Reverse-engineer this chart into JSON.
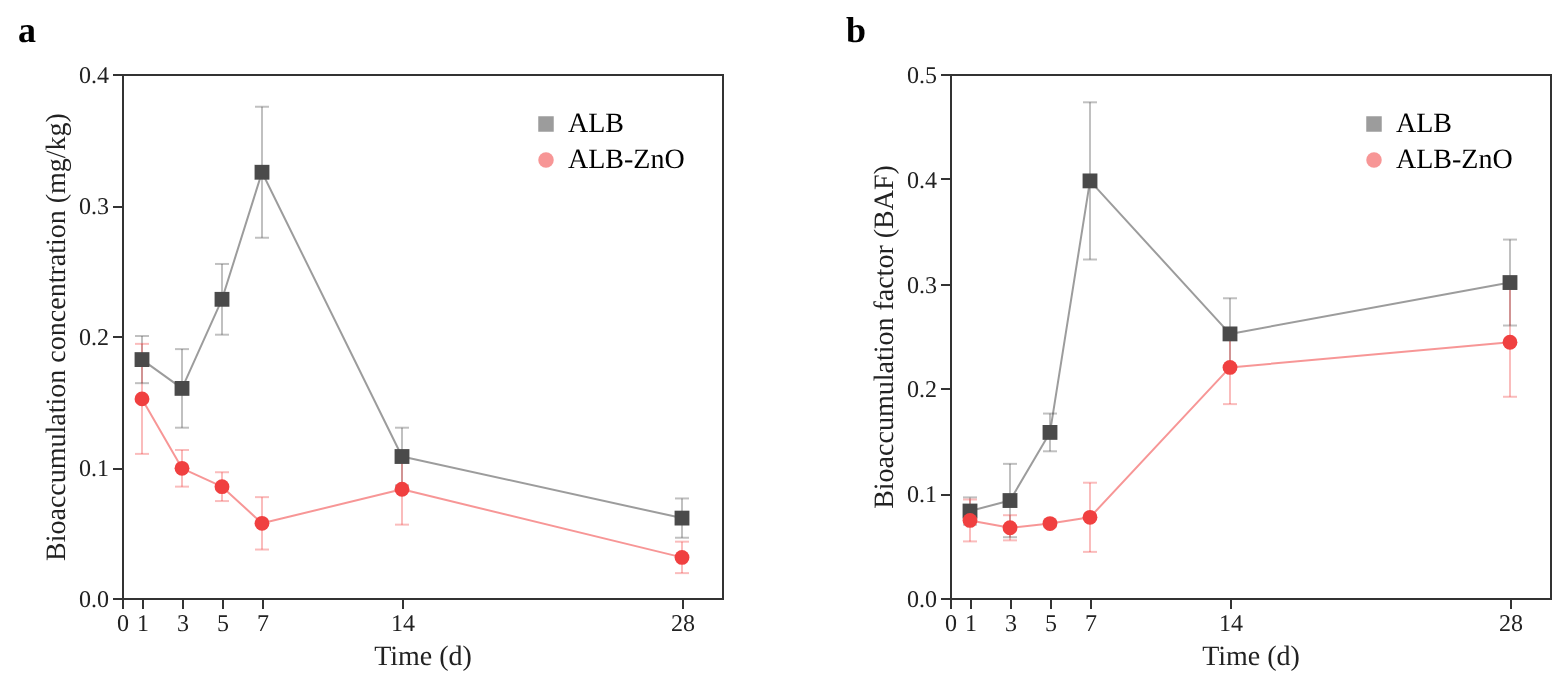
{
  "chart_data": [
    {
      "type": "line",
      "title": "a",
      "xlabel": "Time (d)",
      "ylabel": "Bioaccumulation concentration (mg/kg)",
      "x": [
        1,
        3,
        5,
        7,
        14,
        28
      ],
      "xlim": [
        0,
        30
      ],
      "xticks": [
        0,
        1,
        3,
        5,
        7,
        14,
        28
      ],
      "ylim": [
        0,
        0.4
      ],
      "yticks": [
        {
          "value": 0,
          "label": "0.0"
        },
        0.1,
        0.2,
        0.3,
        0.4
      ],
      "legend": "top right",
      "line_style": "solid",
      "series": [
        {
          "name": "ALB",
          "color": "#4a4a4a",
          "marker": "square",
          "values": [
            0.182,
            0.16,
            0.228,
            0.325,
            0.108,
            0.061
          ],
          "errors": [
            0.018,
            0.03,
            0.027,
            0.05,
            0.022,
            0.015
          ]
        },
        {
          "name": "ALB-ZnO",
          "color": "#f04040",
          "marker": "circle",
          "values": [
            0.152,
            0.099,
            0.085,
            0.057,
            0.083,
            0.031
          ],
          "errors": [
            0.042,
            0.014,
            0.011,
            0.02,
            0.027,
            0.012
          ]
        }
      ]
    },
    {
      "type": "line",
      "title": "b",
      "xlabel": "Time (d)",
      "ylabel": "Bioaccumulation factor (BAF)",
      "x": [
        1,
        3,
        5,
        7,
        14,
        28
      ],
      "xlim": [
        0,
        30
      ],
      "xticks": [
        0,
        1,
        3,
        5,
        7,
        14,
        28
      ],
      "ylim": [
        0,
        0.5
      ],
      "yticks": [
        {
          "value": 0,
          "label": "0.0"
        },
        0.1,
        0.2,
        0.3,
        0.4,
        0.5
      ],
      "legend": "top right",
      "line_style": "solid",
      "series": [
        {
          "name": "ALB",
          "color": "#4a4a4a",
          "marker": "square",
          "values": [
            0.083,
            0.093,
            0.158,
            0.398,
            0.252,
            0.301
          ],
          "errors": [
            0.013,
            0.035,
            0.018,
            0.075,
            0.034,
            0.041
          ]
        },
        {
          "name": "ALB-ZnO",
          "color": "#f04040",
          "marker": "circle",
          "values": [
            0.074,
            0.067,
            0.071,
            0.077,
            0.22,
            0.244
          ],
          "errors": [
            0.02,
            0.012,
            0.003,
            0.033,
            0.035,
            0.052
          ]
        }
      ]
    }
  ]
}
